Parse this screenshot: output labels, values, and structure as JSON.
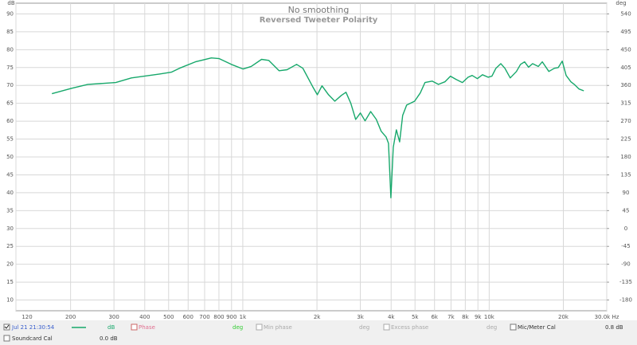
{
  "chart_data": {
    "type": "line",
    "title": "No smoothing",
    "subtitle": "Reversed Tweeter Polarity",
    "y_label": "dB",
    "y2_label": "deg",
    "x_scale": "log",
    "grid": true,
    "x": [
      168,
      202,
      235,
      305,
      353,
      459,
      513,
      553,
      642,
      745,
      803,
      898,
      1003,
      1081,
      1192,
      1274,
      1404,
      1512,
      1653,
      1753,
      1920,
      2006,
      2097,
      2229,
      2364,
      2510,
      2623,
      2744,
      2872,
      3000,
      3135,
      3302,
      3481,
      3645,
      3815,
      3902,
      3990,
      4080,
      4200,
      4330,
      4455,
      4625,
      4980,
      5250,
      5487,
      5868,
      6222,
      6608,
      6960,
      7335,
      7787,
      8214,
      8530,
      8950,
      9387,
      9902,
      10260,
      10650,
      11150,
      11580,
      12170,
      12900,
      13400,
      13920,
      14450,
      15010,
      15820,
      16430,
      17460,
      18390,
      19070,
      19790,
      20530,
      21470,
      22140,
      23160,
      24220
    ],
    "series": [
      {
        "name": "Jul 21 21:30:54",
        "unit": "dB",
        "color": "#17a86b",
        "values": [
          67.7,
          69.2,
          70.3,
          70.8,
          72.1,
          73.2,
          73.7,
          74.8,
          76.6,
          77.7,
          77.5,
          75.9,
          74.6,
          75.3,
          77.3,
          77.0,
          74.1,
          74.4,
          75.9,
          74.8,
          69.7,
          67.4,
          69.9,
          67.4,
          65.6,
          67.2,
          68.1,
          65.0,
          60.5,
          62.3,
          60.1,
          62.7,
          60.5,
          57.2,
          55.6,
          53.8,
          38.6,
          52.7,
          57.6,
          54.2,
          61.6,
          64.5,
          65.6,
          67.9,
          70.8,
          71.2,
          70.3,
          71.0,
          72.6,
          71.7,
          70.8,
          72.3,
          72.8,
          71.9,
          73.0,
          72.3,
          72.6,
          74.8,
          76.1,
          74.8,
          72.1,
          73.9,
          75.9,
          76.6,
          75.1,
          76.1,
          75.3,
          76.6,
          73.9,
          74.8,
          75.0,
          76.8,
          72.8,
          71.0,
          70.3,
          69.0,
          68.5
        ]
      }
    ],
    "xlim": [
      120,
      30000
    ],
    "ylim": [
      7,
      93
    ],
    "y2lim": [
      -207,
      567
    ],
    "xticks": [
      120,
      200,
      300,
      400,
      500,
      600,
      700,
      800,
      900,
      {
        "value": 1000,
        "label": "1k"
      },
      {
        "value": 2000,
        "label": "2k"
      },
      {
        "value": 3000,
        "label": "3k"
      },
      {
        "value": 4000,
        "label": "4k"
      },
      {
        "value": 5000,
        "label": "5k"
      },
      {
        "value": 6000,
        "label": "6k"
      },
      {
        "value": 7000,
        "label": "7k"
      },
      {
        "value": 8000,
        "label": "8k"
      },
      {
        "value": 9000,
        "label": "9k"
      },
      {
        "value": 10000,
        "label": "10k"
      },
      {
        "value": 20000,
        "label": "20k"
      },
      {
        "value": 30000,
        "label": "30.0k Hz"
      }
    ],
    "yticks": [
      90,
      85,
      80,
      75,
      70,
      65,
      60,
      55,
      50,
      45,
      40,
      35,
      30,
      25,
      20,
      15,
      10
    ],
    "y2ticks": [
      540,
      495,
      450,
      405,
      360,
      315,
      270,
      225,
      180,
      135,
      90,
      45,
      0,
      -45,
      -90,
      -135,
      -180
    ]
  },
  "legend_panel": {
    "phase": "Phase",
    "phase_unit": "deg",
    "min_phase": "Min phase",
    "min_phase_unit": "deg",
    "excess_phase": "Excess phase",
    "excess_phase_unit": "deg",
    "mic_cal": "Mic/Meter Cal",
    "mic_cal_value": "0.8 dB",
    "soundcard_cal": "Soundcard Cal",
    "soundcard_cal_value": "0.0 dB"
  }
}
